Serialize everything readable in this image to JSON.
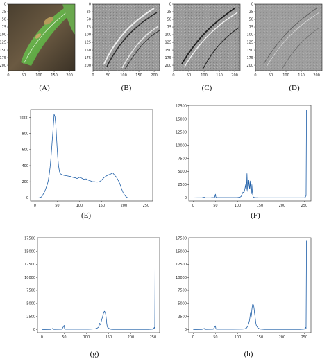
{
  "accent_color": "#1f5fa8",
  "images": [
    {
      "caption": "(A)",
      "xticks": [
        "0",
        "50",
        "100",
        "150",
        "200"
      ],
      "yticks": [
        "0",
        "25",
        "50",
        "75",
        "100",
        "125",
        "150",
        "175",
        "200"
      ],
      "content": "leaf-photo"
    },
    {
      "caption": "(B)",
      "xticks": [
        "0",
        "50",
        "100",
        "150",
        "200"
      ],
      "yticks": [
        "0",
        "25",
        "50",
        "75",
        "100",
        "125",
        "150",
        "175",
        "200"
      ],
      "content": "edge-map-horizontal"
    },
    {
      "caption": "(C)",
      "xticks": [
        "0",
        "50",
        "100",
        "150",
        "200"
      ],
      "yticks": [
        "0",
        "25",
        "50",
        "75",
        "100",
        "125",
        "150",
        "175",
        "200"
      ],
      "content": "edge-map-vertical"
    },
    {
      "caption": "(D)",
      "xticks": [
        "0",
        "50",
        "100",
        "150",
        "200"
      ],
      "yticks": [
        "0",
        "25",
        "50",
        "75",
        "100",
        "125",
        "150",
        "175",
        "200"
      ],
      "content": "edge-map-laplacian"
    }
  ],
  "chart_data": [
    {
      "type": "line",
      "caption": "(E)",
      "xlim": [
        -10,
        265
      ],
      "ylim": [
        -40,
        1100
      ],
      "xticks": [
        0,
        50,
        100,
        150,
        200,
        250
      ],
      "yticks": [
        0,
        200,
        400,
        600,
        800,
        1000
      ],
      "xtick_labels": [
        "0",
        "50",
        "100",
        "150",
        "200",
        "250"
      ],
      "ytick_labels": [
        "0",
        "200",
        "400",
        "600",
        "800",
        "1000"
      ],
      "series": [
        {
          "x": [
            0,
            5,
            8,
            10,
            12,
            14,
            16,
            18,
            20,
            22,
            24,
            26,
            28,
            30,
            32,
            34,
            36,
            38,
            40,
            42,
            43,
            45,
            47,
            49,
            51,
            53,
            55,
            57,
            60,
            65,
            70,
            75,
            80,
            85,
            90,
            95,
            100,
            105,
            110,
            115,
            120,
            125,
            130,
            135,
            140,
            145,
            150,
            155,
            160,
            165,
            170,
            172,
            175,
            178,
            180,
            183,
            186,
            189,
            192,
            195,
            198,
            201,
            204,
            207,
            210,
            215,
            220,
            230,
            240,
            250,
            255
          ],
          "y": [
            0,
            0,
            0,
            2,
            5,
            10,
            20,
            40,
            60,
            80,
            110,
            140,
            170,
            220,
            290,
            380,
            500,
            650,
            800,
            950,
            1040,
            1010,
            900,
            700,
            520,
            400,
            330,
            300,
            290,
            280,
            275,
            270,
            265,
            255,
            250,
            240,
            255,
            245,
            230,
            235,
            220,
            210,
            200,
            200,
            195,
            200,
            220,
            250,
            270,
            285,
            295,
            300,
            310,
            290,
            275,
            260,
            230,
            200,
            160,
            110,
            70,
            40,
            20,
            5,
            0,
            0,
            0,
            0,
            0,
            0,
            0
          ]
        }
      ]
    },
    {
      "type": "line",
      "caption": "(F)",
      "xlim": [
        -10,
        265
      ],
      "ylim": [
        -600,
        17600
      ],
      "xticks": [
        0,
        50,
        100,
        150,
        200,
        250
      ],
      "yticks": [
        0,
        2500,
        5000,
        7500,
        10000,
        12500,
        15000,
        17500
      ],
      "xtick_labels": [
        "0",
        "50",
        "100",
        "150",
        "200",
        "250"
      ],
      "ytick_labels": [
        "0",
        "2500",
        "5000",
        "7500",
        "10000",
        "12500",
        "15000",
        "17500"
      ],
      "series": [
        {
          "x": [
            0,
            20,
            25,
            26,
            27,
            40,
            48,
            50,
            51,
            52,
            60,
            80,
            100,
            105,
            108,
            110,
            112,
            114,
            116,
            118,
            119,
            120,
            121,
            122,
            123,
            124,
            125,
            126,
            127,
            128,
            129,
            130,
            131,
            132,
            133,
            134,
            135,
            136,
            138,
            140,
            145,
            150,
            160,
            180,
            200,
            220,
            240,
            250,
            252,
            253,
            254,
            255
          ],
          "y": [
            0,
            40,
            120,
            40,
            30,
            40,
            80,
            700,
            150,
            80,
            60,
            60,
            80,
            120,
            300,
            700,
            1100,
            900,
            1600,
            2500,
            1200,
            1700,
            4600,
            2000,
            1200,
            2400,
            3400,
            2200,
            1700,
            3200,
            2100,
            1300,
            800,
            2500,
            1200,
            500,
            200,
            120,
            80,
            60,
            40,
            30,
            20,
            20,
            20,
            20,
            30,
            40,
            80,
            300,
            400,
            16800
          ]
        }
      ]
    },
    {
      "type": "line",
      "caption": "(g)",
      "xlim": [
        -10,
        265
      ],
      "ylim": [
        -600,
        17600
      ],
      "xticks": [
        0,
        50,
        100,
        150,
        200,
        250
      ],
      "yticks": [
        0,
        2500,
        5000,
        7500,
        10000,
        12500,
        15000,
        17500
      ],
      "xtick_labels": [
        "0",
        "50",
        "100",
        "150",
        "200",
        "250"
      ],
      "ytick_labels": [
        "0",
        "2500",
        "5000",
        "7500",
        "10000",
        "12500",
        "15000",
        "17500"
      ],
      "series": [
        {
          "x": [
            0,
            20,
            25,
            26,
            27,
            45,
            50,
            51,
            52,
            70,
            90,
            110,
            120,
            125,
            128,
            130,
            132,
            134,
            136,
            138,
            139,
            140,
            141,
            142,
            143,
            144,
            145,
            146,
            147,
            148,
            150,
            152,
            154,
            156,
            160,
            180,
            200,
            220,
            240,
            250,
            252,
            253,
            254,
            255
          ],
          "y": [
            0,
            40,
            250,
            60,
            40,
            60,
            800,
            150,
            60,
            60,
            60,
            80,
            150,
            300,
            500,
            1200,
            900,
            1700,
            2300,
            2900,
            3300,
            3400,
            3500,
            3300,
            3100,
            2700,
            2000,
            1100,
            600,
            400,
            300,
            150,
            80,
            50,
            40,
            30,
            30,
            30,
            40,
            80,
            300,
            400,
            200,
            17000
          ]
        }
      ]
    },
    {
      "type": "line",
      "caption": "(h)",
      "xlim": [
        -10,
        265
      ],
      "ylim": [
        -600,
        17600
      ],
      "xticks": [
        0,
        50,
        100,
        150,
        200,
        250
      ],
      "yticks": [
        0,
        2500,
        5000,
        7500,
        10000,
        12500,
        15000,
        17500
      ],
      "xtick_labels": [
        "0",
        "50",
        "100",
        "150",
        "200",
        "250"
      ],
      "ytick_labels": [
        "0",
        "2500",
        "5000",
        "7500",
        "10000",
        "12500",
        "15000",
        "17500"
      ],
      "series": [
        {
          "x": [
            0,
            20,
            25,
            26,
            27,
            45,
            50,
            51,
            52,
            70,
            90,
            110,
            115,
            120,
            123,
            125,
            127,
            128,
            129,
            130,
            131,
            132,
            133,
            134,
            135,
            136,
            137,
            138,
            139,
            140,
            141,
            142,
            144,
            146,
            148,
            150,
            152,
            155,
            160,
            180,
            200,
            220,
            240,
            250,
            252,
            253,
            254,
            255
          ],
          "y": [
            0,
            40,
            220,
            60,
            40,
            60,
            700,
            150,
            60,
            60,
            60,
            80,
            120,
            300,
            700,
            1200,
            1900,
            2600,
            3300,
            2200,
            2800,
            3800,
            4500,
            4900,
            4800,
            4600,
            4000,
            3200,
            2600,
            1900,
            1200,
            800,
            500,
            300,
            200,
            120,
            80,
            60,
            40,
            30,
            30,
            30,
            40,
            80,
            300,
            400,
            200,
            17000
          ]
        }
      ]
    }
  ]
}
